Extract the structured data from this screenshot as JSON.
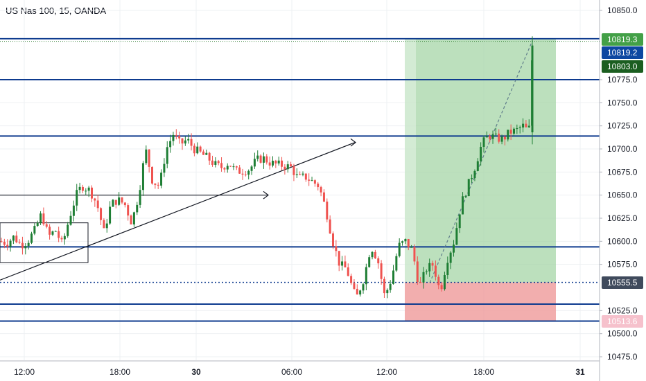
{
  "title": "US Nas 100, 15, OANDA",
  "colors": {
    "up": "#26a69a",
    "up_body": "#1e7e34",
    "down": "#ef5350",
    "hline": "#0d3a8e",
    "grid": "#eef0f3",
    "profit_zone": "#a5d6a7",
    "loss_zone": "#ef9a9a",
    "label_green": "#1b5e20",
    "label_lightgreen": "#43a047",
    "label_blue": "#0d47a1",
    "label_slate": "#3f4a5c",
    "label_red": "#f8bbd0"
  },
  "chart_data": {
    "type": "candlestick",
    "symbol": "US Nas 100",
    "interval": "15",
    "source": "OANDA",
    "ylim": [
      10470,
      10860
    ],
    "y_ticks": [
      10475.0,
      10500.0,
      10525.0,
      10575.0,
      10600.0,
      10625.0,
      10650.0,
      10675.0,
      10700.0,
      10725.0,
      10750.0,
      10775.0,
      10850.0
    ],
    "x_ticks": [
      "12:00",
      "18:00",
      "30",
      "06:00",
      "12:00",
      "18:00",
      "31"
    ],
    "price_labels": [
      {
        "text": "10819.3",
        "value": 10819.3,
        "style": "target"
      },
      {
        "text": "10819.2",
        "value": 10819.2,
        "style": "current"
      },
      {
        "text": "10803.0",
        "value": 10803.0,
        "style": "last"
      },
      {
        "text": "10555.5",
        "value": 10555.5,
        "style": "entry"
      },
      {
        "text": "10513.6",
        "value": 10513.6,
        "style": "stop"
      }
    ],
    "horizontal_levels": [
      10819.3,
      10775.0,
      10714.0,
      10594.0,
      10532.0,
      10513.6
    ],
    "position": {
      "entry": 10555.5,
      "target": 10819.3,
      "stop": 10513.6
    },
    "candles_summary": {
      "start_price": 10556,
      "high_day1": 10716,
      "dip_low": 10514,
      "last": 10803.0
    }
  }
}
